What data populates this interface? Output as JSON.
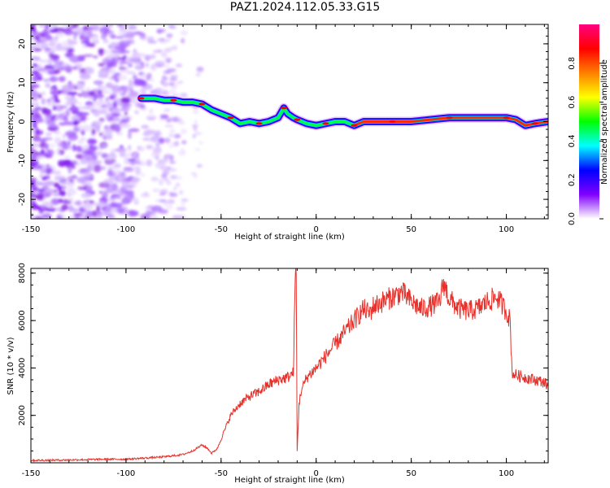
{
  "figure": {
    "title": "PAZ1.2024.112.05.33.G15"
  },
  "chart_data": [
    {
      "type": "heatmap",
      "title": "",
      "xlabel": "Height of straight line (km)",
      "ylabel": "Frequency (Hz)",
      "xlim": [
        -150,
        122
      ],
      "ylim": [
        -25,
        25
      ],
      "x_ticks": [
        "-150",
        "-100",
        "-50",
        "0",
        "50",
        "100"
      ],
      "x_tick_values": [
        -150,
        -100,
        -50,
        0,
        50,
        100
      ],
      "y_ticks": [
        "-20",
        "-10",
        "0",
        "10",
        "20"
      ],
      "y_tick_values": [
        -20,
        -10,
        0,
        10,
        20
      ],
      "colorbar": {
        "label": "Normalized spectral amplitude",
        "range": [
          0,
          1
        ],
        "ticks": [
          "0.0",
          "0.2",
          "0.4",
          "0.6",
          "0.8"
        ],
        "tick_values": [
          0,
          0.2,
          0.4,
          0.6,
          0.8
        ],
        "colormap": [
          "#ffffff",
          "#8000ff",
          "#0000ff",
          "#00ffff",
          "#00ff00",
          "#ffff00",
          "#ff8000",
          "#ff0000",
          "#ff0080"
        ]
      },
      "ridge": {
        "x": [
          -92,
          -85,
          -80,
          -75,
          -70,
          -65,
          -60,
          -55,
          -50,
          -45,
          -40,
          -35,
          -30,
          -25,
          -20,
          -17,
          -15,
          -12,
          -10,
          -5,
          0,
          5,
          10,
          15,
          20,
          25,
          30,
          40,
          50,
          60,
          70,
          80,
          90,
          100,
          105,
          110,
          115,
          122
        ],
        "freq": [
          6,
          6,
          5.5,
          5.5,
          5,
          5,
          4.5,
          3,
          2,
          1,
          -0.5,
          0,
          -0.5,
          0,
          1,
          3.5,
          2,
          1,
          0.5,
          -0.5,
          -1,
          -0.5,
          0,
          0,
          -1,
          0,
          0,
          0,
          0,
          0.5,
          1,
          1,
          1,
          1,
          0.5,
          -1,
          -0.5,
          0
        ]
      },
      "noise_region": {
        "x_range": [
          -150,
          -70
        ]
      }
    },
    {
      "type": "line",
      "title": "",
      "xlabel": "Height of straight line (km)",
      "ylabel": "SNR (10 * v/v)",
      "xlim": [
        -150,
        122
      ],
      "ylim": [
        0,
        8200
      ],
      "x_ticks": [
        "-150",
        "-100",
        "-50",
        "0",
        "50",
        "100"
      ],
      "x_tick_values": [
        -150,
        -100,
        -50,
        0,
        50,
        100
      ],
      "y_ticks": [
        "2000",
        "4000",
        "6000",
        "8000"
      ],
      "y_tick_values": [
        2000,
        4000,
        6000,
        8000
      ],
      "series": [
        {
          "color": "#e8302a",
          "x": [
            -150,
            -130,
            -110,
            -100,
            -90,
            -80,
            -70,
            -65,
            -60,
            -57,
            -55,
            -52,
            -50,
            -45,
            -40,
            -35,
            -30,
            -25,
            -20,
            -15,
            -12,
            -11,
            -10.5,
            -10,
            -9,
            -8,
            -5,
            0,
            5,
            10,
            15,
            20,
            25,
            28,
            30,
            35,
            40,
            45,
            50,
            55,
            60,
            65,
            67,
            70,
            75,
            80,
            85,
            90,
            95,
            100,
            102,
            103,
            105,
            110,
            115,
            120,
            122
          ],
          "y": [
            100,
            120,
            150,
            150,
            200,
            250,
            350,
            500,
            750,
            600,
            400,
            600,
            1000,
            2000,
            2500,
            2800,
            3000,
            3300,
            3500,
            3600,
            3800,
            7800,
            8100,
            500,
            2500,
            3000,
            3600,
            4000,
            4500,
            5000,
            5500,
            6000,
            6500,
            6300,
            6600,
            6800,
            7000,
            7200,
            6800,
            6500,
            6600,
            6800,
            7600,
            6900,
            6500,
            6400,
            6500,
            6800,
            7000,
            6400,
            6000,
            3800,
            3700,
            3600,
            3500,
            3400,
            3200
          ]
        }
      ]
    }
  ]
}
